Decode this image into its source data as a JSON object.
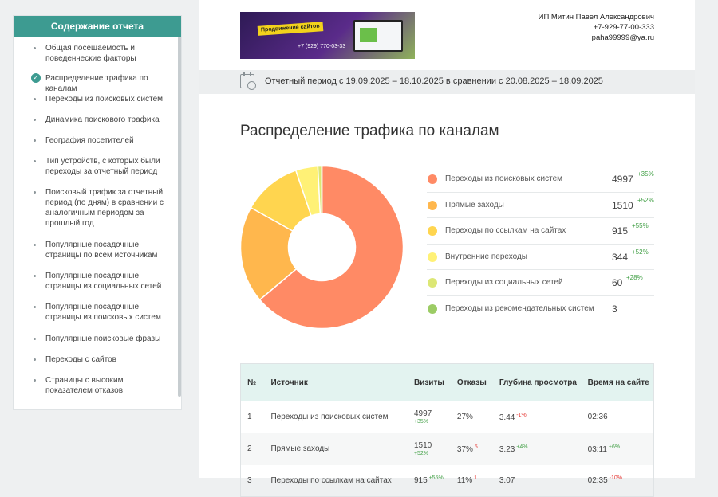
{
  "sidebar": {
    "title": "Содержание отчета",
    "items": [
      {
        "label": "Общая посещаемость и поведенческие факторы",
        "active": false
      },
      {
        "label": "Распределение трафика по каналам",
        "active": true
      },
      {
        "label": "Переходы из поисковых систем",
        "active": false
      },
      {
        "label": "Динамика поискового трафика",
        "active": false
      },
      {
        "label": "География посетителей",
        "active": false
      },
      {
        "label": "Тип устройств, с которых были переходы за отчетный период",
        "active": false
      },
      {
        "label": "Поисковый трафик за отчетный период (по дням) в сравнении с аналогичным периодом за прошлый год",
        "active": false
      },
      {
        "label": "Популярные посадочные страницы по всем источникам",
        "active": false
      },
      {
        "label": "Популярные посадочные страницы из социальных сетей",
        "active": false
      },
      {
        "label": "Популярные посадочные страницы из поисковых систем",
        "active": false
      },
      {
        "label": "Популярные поисковые фразы",
        "active": false
      },
      {
        "label": "Переходы с сайтов",
        "active": false
      },
      {
        "label": "Страницы с высоким показателем отказов",
        "active": false
      }
    ]
  },
  "header": {
    "banner_tag": "Продвижение сайтов",
    "banner_phone": "+7 (929) 770-03-33",
    "contact_name": "ИП Митин Павел Александрович",
    "contact_phone": "+7-929-77-00-333",
    "contact_email": "paha99999@ya.ru"
  },
  "period": "Отчетный период с 19.09.2025 – 18.10.2025 в сравнении с 20.08.2025 – 18.09.2025",
  "section_title": "Распределение трафика по каналам",
  "chart_data": {
    "type": "pie",
    "categories": [
      "Переходы из поисковых систем",
      "Прямые заходы",
      "Переходы по ссылкам на сайтах",
      "Внутренние переходы",
      "Переходы из социальных сетей",
      "Переходы из рекомендательных систем"
    ],
    "values": [
      4997,
      1510,
      915,
      344,
      60,
      3
    ],
    "changes": [
      "+35%",
      "+52%",
      "+55%",
      "+52%",
      "+28%",
      ""
    ],
    "colors": [
      "#ff8a65",
      "#ffb74d",
      "#ffd54f",
      "#fff176",
      "#dce775",
      "#9ccc65"
    ]
  },
  "table": {
    "headers": [
      "№",
      "Источник",
      "Визиты",
      "Отказы",
      "Глубина просмотра",
      "Время на сайте"
    ],
    "rows": [
      {
        "n": "1",
        "source": "Переходы из поисковых систем",
        "visits": "4997",
        "visits_chg": "+35%",
        "bounce": "27%",
        "bounce_chg": "",
        "depth": "3.44",
        "depth_chg": "-1%",
        "depth_dir": "down",
        "time": "02:36",
        "time_chg": "",
        "time_dir": ""
      },
      {
        "n": "2",
        "source": "Прямые заходы",
        "visits": "1510",
        "visits_chg": "+52%",
        "bounce": "37%",
        "bounce_chg": "5",
        "depth": "3.23",
        "depth_chg": "+4%",
        "depth_dir": "up",
        "time": "03:11",
        "time_chg": "+6%",
        "time_dir": "up"
      },
      {
        "n": "3",
        "source": "Переходы по ссылкам на сайтах",
        "visits": "915",
        "visits_chg": "+55%",
        "bounce": "11%",
        "bounce_chg": "1",
        "depth": "3.07",
        "depth_chg": "",
        "depth_dir": "",
        "time": "02:35",
        "time_chg": "-10%",
        "time_dir": "down"
      }
    ]
  }
}
